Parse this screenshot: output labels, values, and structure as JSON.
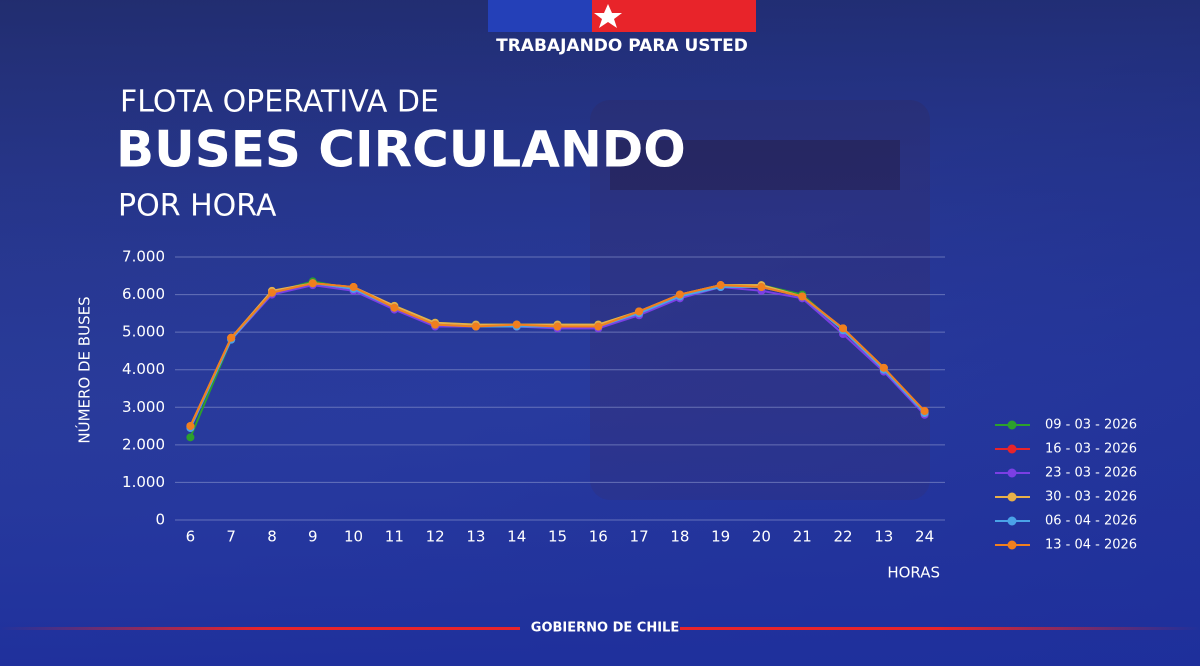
{
  "header": {
    "banner": "TRABAJANDO PARA USTED",
    "title_line1": "FLOTA OPERATIVA DE",
    "title_line2": "BUSES CIRCULANDO",
    "title_line3": "POR HORA"
  },
  "footer": "GOBIERNO DE CHILE",
  "chart_data": {
    "type": "line",
    "y_label": "NÚMERO DE BUSES",
    "x_label": "HORAS",
    "categories": [
      "6",
      "7",
      "8",
      "9",
      "10",
      "11",
      "12",
      "13",
      "14",
      "15",
      "16",
      "17",
      "18",
      "19",
      "20",
      "21",
      "22",
      "13",
      "24"
    ],
    "ylim": [
      0,
      7000
    ],
    "yticks": [
      0,
      {
        "value": 1000,
        "label": "1.000"
      },
      {
        "value": 2000,
        "label": "2.000"
      },
      {
        "value": 3000,
        "label": "3.000"
      },
      {
        "value": 4000,
        "label": "4.000"
      },
      {
        "value": 5000,
        "label": "5.000"
      },
      {
        "value": 6000,
        "label": "6.000"
      },
      {
        "value": 7000,
        "label": "7.000"
      }
    ],
    "grid": true,
    "legend": "right",
    "series": [
      {
        "name": "09 - 03 - 2026",
        "color": "#2ca02c",
        "values": [
          2200,
          4800,
          6050,
          6350,
          6150,
          5700,
          5250,
          5200,
          5200,
          5200,
          5200,
          5550,
          6000,
          6250,
          6250,
          6000,
          5050,
          4000,
          2850
        ]
      },
      {
        "name": "16 - 03 - 2026",
        "color": "#e8242a",
        "values": [
          2500,
          4850,
          6050,
          6300,
          6200,
          5650,
          5200,
          5150,
          5150,
          5150,
          5150,
          5550,
          6000,
          6250,
          6200,
          5950,
          5050,
          4000,
          2900
        ]
      },
      {
        "name": "23 - 03 - 2026",
        "color": "#7b3fe4",
        "values": [
          2450,
          4800,
          6000,
          6250,
          6100,
          5600,
          5150,
          5150,
          5150,
          5100,
          5100,
          5450,
          5900,
          6200,
          6100,
          5900,
          4950,
          3950,
          2800
        ]
      },
      {
        "name": "30 - 03 - 2026",
        "color": "#e8b04a",
        "values": [
          2500,
          4850,
          6100,
          6300,
          6200,
          5700,
          5250,
          5200,
          5200,
          5200,
          5200,
          5550,
          6000,
          6250,
          6250,
          5950,
          5100,
          4050,
          2850
        ]
      },
      {
        "name": "06 - 04 - 2026",
        "color": "#4aa3e8",
        "values": [
          2450,
          4800,
          6050,
          6300,
          6150,
          5650,
          5200,
          5150,
          5150,
          5150,
          5150,
          5500,
          5950,
          6200,
          6200,
          5950,
          5050,
          4000,
          2850
        ]
      },
      {
        "name": "13 - 04 - 2026",
        "color": "#f07f1e",
        "values": [
          2500,
          4850,
          6050,
          6300,
          6200,
          5650,
          5200,
          5150,
          5200,
          5150,
          5150,
          5550,
          6000,
          6250,
          6200,
          5950,
          5100,
          4050,
          2900
        ]
      }
    ]
  }
}
